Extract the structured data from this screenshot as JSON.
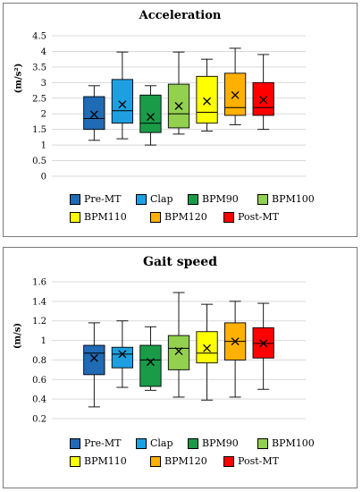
{
  "chart_data": [
    {
      "type": "box",
      "title": "Acceleration",
      "ylabel": "(m/s²)",
      "ylim": [
        0,
        4.5
      ],
      "yticks": [
        "0",
        "0.5",
        "1",
        "1.5",
        "2",
        "2.5",
        "3",
        "3.5",
        "4",
        "4.5"
      ],
      "grid": true,
      "legend_position": "bottom",
      "series": [
        {
          "name": "Pre-MT",
          "color": "#1f6bb5",
          "min": 1.15,
          "q1": 1.5,
          "median": 1.85,
          "q3": 2.55,
          "max": 2.9,
          "mean": 1.98
        },
        {
          "name": "Clap",
          "color": "#1ea0e0",
          "min": 1.2,
          "q1": 1.7,
          "median": 2.1,
          "q3": 3.1,
          "max": 3.98,
          "mean": 2.3
        },
        {
          "name": "BPM90",
          "color": "#1a9b48",
          "min": 1.0,
          "q1": 1.4,
          "median": 1.7,
          "q3": 2.6,
          "max": 2.9,
          "mean": 1.9
        },
        {
          "name": "BPM100",
          "color": "#92d050",
          "min": 1.35,
          "q1": 1.55,
          "median": 2.0,
          "q3": 2.95,
          "max": 3.98,
          "mean": 2.25
        },
        {
          "name": "BPM110",
          "color": "#ffff00",
          "min": 1.45,
          "q1": 1.7,
          "median": 2.05,
          "q3": 3.2,
          "max": 3.75,
          "mean": 2.4
        },
        {
          "name": "BPM120",
          "color": "#ffb000",
          "min": 1.65,
          "q1": 1.95,
          "median": 2.2,
          "q3": 3.3,
          "max": 4.1,
          "mean": 2.6
        },
        {
          "name": "Post-MT",
          "color": "#ff0000",
          "min": 1.5,
          "q1": 1.95,
          "median": 2.2,
          "q3": 3.0,
          "max": 3.9,
          "mean": 2.45
        }
      ]
    },
    {
      "type": "box",
      "title": "Gait speed",
      "ylabel": "(m/s)",
      "ylim": [
        0.2,
        1.6
      ],
      "yticks": [
        "0.2",
        "0.4",
        "0.6",
        "0.8",
        "1",
        "1.2",
        "1.4",
        "1.6"
      ],
      "grid": true,
      "legend_position": "bottom",
      "series": [
        {
          "name": "Pre-MT",
          "color": "#1f6bb5",
          "min": 0.32,
          "q1": 0.65,
          "median": 0.87,
          "q3": 0.95,
          "max": 1.18,
          "mean": 0.82
        },
        {
          "name": "Clap",
          "color": "#1ea0e0",
          "min": 0.52,
          "q1": 0.72,
          "median": 0.86,
          "q3": 0.93,
          "max": 1.2,
          "mean": 0.86
        },
        {
          "name": "BPM90",
          "color": "#1a9b48",
          "min": 0.49,
          "q1": 0.53,
          "median": 0.8,
          "q3": 0.95,
          "max": 1.14,
          "mean": 0.78
        },
        {
          "name": "BPM100",
          "color": "#92d050",
          "min": 0.42,
          "q1": 0.7,
          "median": 0.92,
          "q3": 1.05,
          "max": 1.49,
          "mean": 0.89
        },
        {
          "name": "BPM110",
          "color": "#ffff00",
          "min": 0.39,
          "q1": 0.77,
          "median": 0.87,
          "q3": 1.09,
          "max": 1.37,
          "mean": 0.92
        },
        {
          "name": "BPM120",
          "color": "#ffb000",
          "min": 0.42,
          "q1": 0.8,
          "median": 0.99,
          "q3": 1.18,
          "max": 1.4,
          "mean": 0.99
        },
        {
          "name": "Post-MT",
          "color": "#ff0000",
          "min": 0.5,
          "q1": 0.82,
          "median": 0.97,
          "q3": 1.13,
          "max": 1.38,
          "mean": 0.97
        }
      ]
    }
  ]
}
